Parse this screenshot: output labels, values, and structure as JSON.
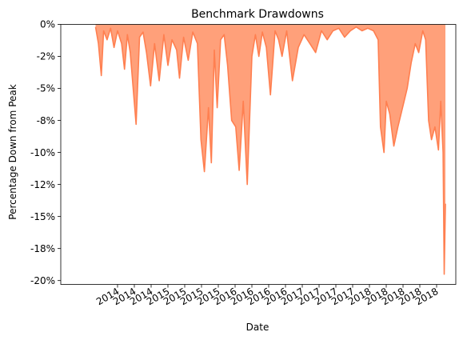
{
  "chart_data": {
    "type": "area",
    "title": "Benchmark Drawdowns",
    "xlabel": "Date",
    "ylabel": "Percentage Down from Peak",
    "x_tick_labels": [
      "2014",
      "2014",
      "2014",
      "2015",
      "2015",
      "2015",
      "2015",
      "2016",
      "2016",
      "2016",
      "2016",
      "2017",
      "2017",
      "2017",
      "2017",
      "2018",
      "2018",
      "2018",
      "2018",
      "2018"
    ],
    "y_ticks": [
      {
        "value": 0,
        "label": "0%"
      },
      {
        "value": -2.5,
        "label": "-2%"
      },
      {
        "value": -5,
        "label": "-5%"
      },
      {
        "value": -7.5,
        "label": "-8%"
      },
      {
        "value": -10,
        "label": "-10%"
      },
      {
        "value": -12.5,
        "label": "-12%"
      },
      {
        "value": -15,
        "label": "-15%"
      },
      {
        "value": -17.5,
        "label": "-18%"
      },
      {
        "value": -20,
        "label": "-20%"
      }
    ],
    "ylim": [
      -20.3,
      0
    ],
    "xlim": [
      2013.0,
      2019.82
    ],
    "grid": false,
    "legend": "none",
    "fill_color": "#ffa07a",
    "line_color": "#ff7f50",
    "x": [
      2013.6,
      2013.65,
      2013.7,
      2013.74,
      2013.8,
      2013.86,
      2013.92,
      2013.98,
      2014.05,
      2014.1,
      2014.15,
      2014.2,
      2014.3,
      2014.36,
      2014.42,
      2014.48,
      2014.55,
      2014.62,
      2014.7,
      2014.78,
      2014.85,
      2014.92,
      2015.0,
      2015.05,
      2015.12,
      2015.2,
      2015.28,
      2015.36,
      2015.42,
      2015.48,
      2015.55,
      2015.6,
      2015.65,
      2015.7,
      2015.76,
      2015.82,
      2015.88,
      2015.95,
      2016.02,
      2016.08,
      2016.15,
      2016.22,
      2016.3,
      2016.36,
      2016.42,
      2016.48,
      2016.55,
      2016.62,
      2016.7,
      2016.76,
      2016.82,
      2016.9,
      2017.0,
      2017.1,
      2017.2,
      2017.3,
      2017.4,
      2017.5,
      2017.6,
      2017.7,
      2017.8,
      2017.9,
      2018.0,
      2018.1,
      2018.2,
      2018.3,
      2018.4,
      2018.48,
      2018.52,
      2018.58,
      2018.62,
      2018.68,
      2018.75,
      2018.82,
      2018.9,
      2018.98,
      2019.05,
      2019.12,
      2019.18,
      2019.25,
      2019.3,
      2019.35,
      2019.4,
      2019.46,
      2019.52,
      2019.56,
      2019.6,
      2019.62,
      2019.64
    ],
    "values": [
      -0.2,
      -1.5,
      -4,
      -0.5,
      -1.2,
      -0.3,
      -1.8,
      -0.5,
      -1.5,
      -3.5,
      -0.8,
      -2.2,
      -7.8,
      -1,
      -0.6,
      -2.2,
      -4.8,
      -1.5,
      -4.4,
      -0.8,
      -3.2,
      -1.2,
      -2,
      -4.2,
      -1,
      -2.8,
      -0.6,
      -1.5,
      -9,
      -11.5,
      -6.5,
      -10.8,
      -2,
      -6.5,
      -1.2,
      -0.8,
      -3.2,
      -7.5,
      -8,
      -11.4,
      -6,
      -12.5,
      -2.5,
      -0.8,
      -2.5,
      -0.6,
      -1.8,
      -5.5,
      -0.5,
      -1.2,
      -2.5,
      -0.5,
      -4.4,
      -1.8,
      -0.8,
      -1.5,
      -2.2,
      -0.5,
      -1.2,
      -0.5,
      -0.3,
      -1,
      -0.5,
      -0.2,
      -0.5,
      -0.3,
      -0.5,
      -1.2,
      -8,
      -10,
      -6,
      -7,
      -9.5,
      -8,
      -6.5,
      -5,
      -3,
      -1.5,
      -2.2,
      -0.5,
      -1.2,
      -7.5,
      -9,
      -8,
      -9.8,
      -6,
      -10,
      -19.5,
      -14
    ]
  }
}
